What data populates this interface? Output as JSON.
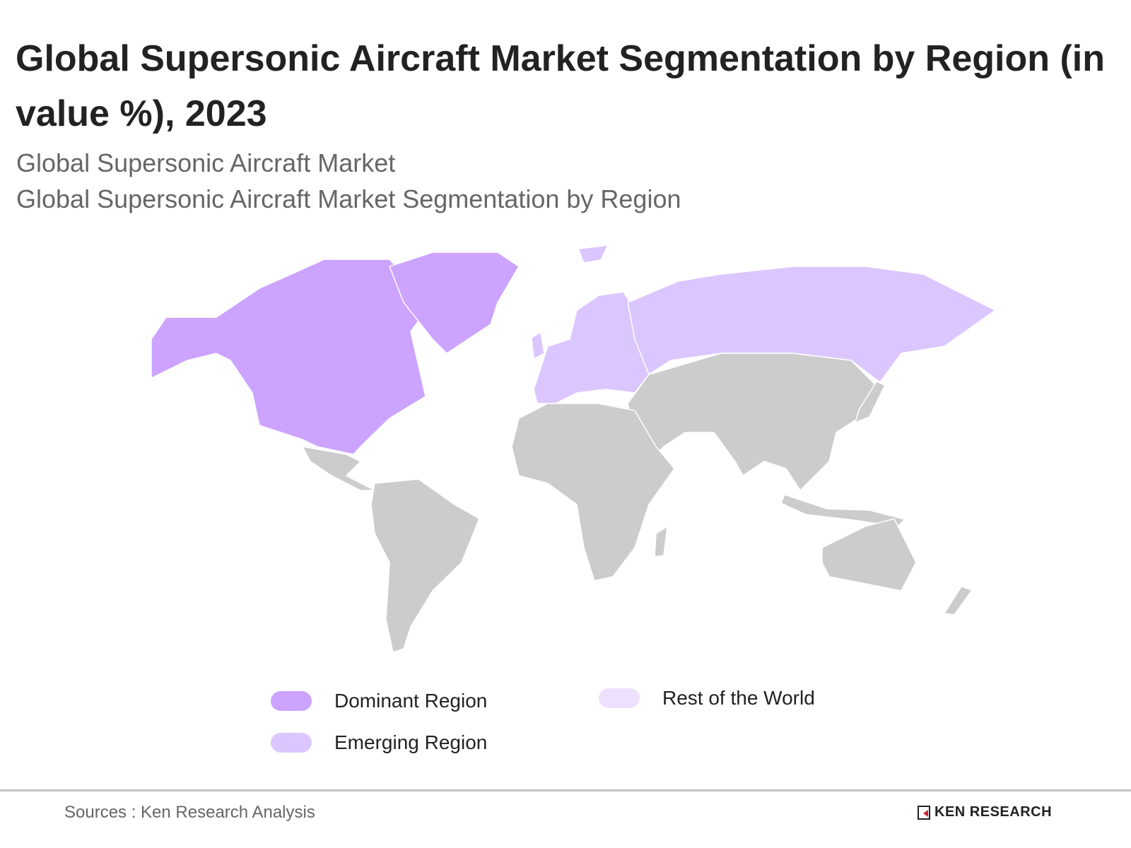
{
  "title": "Global Supersonic Aircraft Market Segmentation by Region (in value %), 2023",
  "subtitles": [
    "Global Supersonic Aircraft Market",
    "Global Supersonic Aircraft Market Segmentation by Region"
  ],
  "map": {
    "colors": {
      "dominant": "#cca3ff",
      "emerging": "#dcc6ff",
      "rest": "#efdfff",
      "no_data": "#cccccc",
      "border": "#ffffff"
    },
    "regions": {
      "dominant": [
        "North America",
        "Greenland"
      ],
      "emerging": [
        "Europe",
        "Russia"
      ],
      "no_data": [
        "Latin America",
        "Africa",
        "Middle East",
        "Asia",
        "Oceania"
      ]
    }
  },
  "legend": [
    {
      "label": "Dominant Region",
      "color": "#cca3ff"
    },
    {
      "label": "Emerging Region",
      "color": "#dcc6ff"
    },
    {
      "label": "Rest of the World",
      "color": "#efdfff"
    }
  ],
  "footer": {
    "source": "Sources : Ken Research Analysis",
    "logo": "KEN RESEARCH"
  }
}
